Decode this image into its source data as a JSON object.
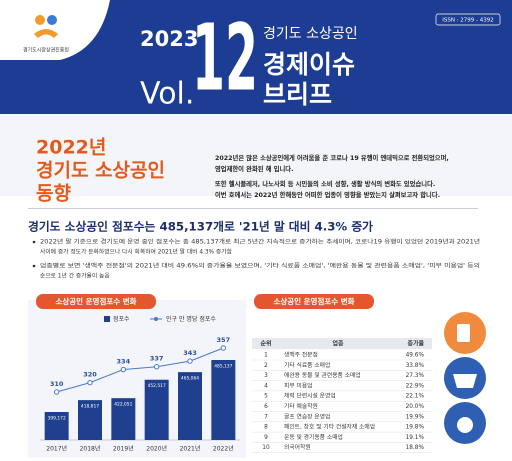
{
  "header": {
    "org": "경기도시장상권진흥원",
    "issn": "ISSN : 2799 - 4392",
    "year": "2023",
    "vol": "Vol.",
    "number": "12",
    "subtitle": "경기도 소상공인",
    "title_lines": [
      "경제이슈",
      "브리프"
    ]
  },
  "section": {
    "title_lines": [
      "2022년",
      "경기도 소상공인",
      "동향"
    ],
    "intro_lines": [
      "2022년은 많은 소상공인에게 어려움을 준 코로나 19 유행이 엔데믹으로 전환되었으며,",
      "영업제한이 완화된 해 입니다.",
      "또한 헬시플레저, 나노사회 등 시민들의 소비 성향, 생활 방식의 변화도 있었습니다.",
      "이번 호에서는 2022년 한해동안 어떠한 업종이 영향을 받았는지 살펴보고자 합니다."
    ],
    "headline": "경기도 소상공인 점포수는 485,137개로 '21년 말 대비 4.3% 증가",
    "bullets": [
      [
        "2022년 말 기준으로 경기도에 운영 중인 점포수는 총 485,137개로 최근 5년간 지속적으로 증가하는 추세이며, 코로나19 유행이 있었던 2019년과 2021년",
        "사이에 증가 정도가 둔화하였으나 다시 회복하여 2021년 말 대비 4.3% 증가함"
      ],
      [
        "업종별로 보면 '생맥주 전문점'의 2021년 대비 49.6%의 증가율을 보였으며, '기타 식료품 소매업', '애완용 동물 및 관련용품 소매업', '피부 미용업' 등의",
        "순으로 1년 간 증가율이 높음"
      ]
    ]
  },
  "chart_data": {
    "type": "bar",
    "title": "소상공인 운영점포수 변화",
    "categories": [
      "2017년",
      "2018년",
      "2019년",
      "2020년",
      "2021년",
      "2022년"
    ],
    "series": [
      {
        "name": "점포수",
        "color": "#1f3f8f",
        "values": [
          399172,
          418817,
          422051,
          452517,
          465064,
          485137
        ],
        "value_labels": [
          "399,172",
          "418,817",
          "422,051",
          "452,517",
          "465,064",
          "485,137"
        ]
      },
      {
        "name": "인구 만 명당 점포수",
        "type": "line",
        "color": "#4a78c8",
        "values": [
          310,
          320,
          334,
          337,
          343,
          357
        ]
      }
    ]
  },
  "table": {
    "title": "소상공인 운영점포수 변화",
    "header": [
      "순위",
      "업종",
      "증가율"
    ],
    "rows": [
      [
        1,
        "생맥주 전문점",
        "49.6%"
      ],
      [
        2,
        "기타 식료품 소매업",
        "33.8%"
      ],
      [
        3,
        "애완용 동물 및 관련용품 소매업",
        "27.3%"
      ],
      [
        4,
        "피부 미용업",
        "22.9%"
      ],
      [
        5,
        "체력 단련시설 운영업",
        "22.1%"
      ],
      [
        6,
        "기타 예술학원",
        "20.0%"
      ],
      [
        7,
        "골프 연습장 운영업",
        "19.9%"
      ],
      [
        8,
        "페인트, 창호 및 기타 건설자재 소매업",
        "19.8%"
      ],
      [
        9,
        "운동 및 경기용품 소매업",
        "19.1%"
      ],
      [
        10,
        "외국어학원",
        "18.8%"
      ]
    ]
  }
}
